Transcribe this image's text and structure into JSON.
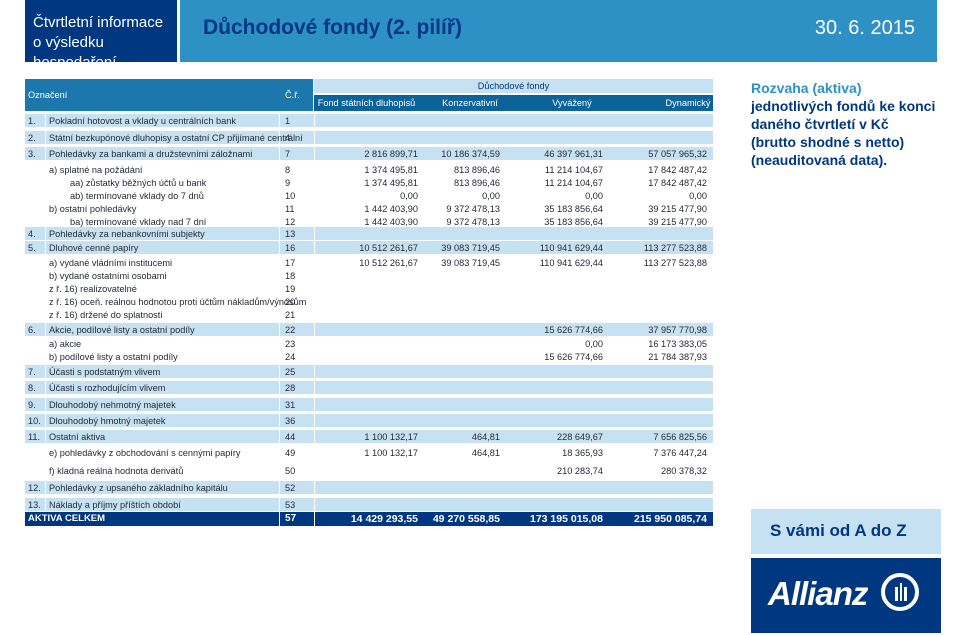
{
  "header": {
    "left_line1": "Čtvrtletní informace",
    "left_line2": "o výsledku hospodaření",
    "title": "Důchodové fondy (2. pilíř)",
    "date": "30. 6. 2015"
  },
  "table": {
    "col_label": "Označení",
    "col_row": "Č.ř.",
    "group_header": "Důchodové fondy",
    "funds": [
      "Fond státních dluhopisů",
      "Konzervativní",
      "Vyvážený",
      "Dynamický"
    ],
    "rows": [
      {
        "num": "1.",
        "label": "Pokladní hotovost a vklady u centrálních bank",
        "r": "1",
        "v": [
          "",
          "",
          "",
          ""
        ]
      },
      {
        "num": "2.",
        "label": "Státní bezkupónové dluhopisy a ostatní CP přijímané centrální",
        "r": "4",
        "v": [
          "",
          "",
          "",
          ""
        ]
      },
      {
        "num": "3.",
        "label": "Pohledávky za bankami a družstevními záložnami",
        "r": "7",
        "v": [
          "2 816 899,71",
          "10 186 374,59",
          "46 397 961,31",
          "57 057 965,32"
        ]
      },
      {
        "num": "",
        "label": "a) splatné na požádání",
        "r": "8",
        "v": [
          "1 374 495,81",
          "813 896,46",
          "11 214 104,67",
          "17 842 487,42"
        ]
      },
      {
        "num": "",
        "label": "aa) zůstatky běžných účtů u bank",
        "r": "9",
        "v": [
          "1 374 495,81",
          "813 896,46",
          "11 214 104,67",
          "17 842 487,42"
        ]
      },
      {
        "num": "",
        "label": "ab) termínované vklady do 7 dnů",
        "r": "10",
        "v": [
          "0,00",
          "0,00",
          "0,00",
          "0,00"
        ]
      },
      {
        "num": "",
        "label": "b) ostatní pohledávky",
        "r": "11",
        "v": [
          "1 442 403,90",
          "9 372 478,13",
          "35 183 856,64",
          "39 215 477,90"
        ]
      },
      {
        "num": "",
        "label": "ba) termínované vklady nad 7 dní",
        "r": "12",
        "v": [
          "1 442 403,90",
          "9 372 478,13",
          "35 183 856,64",
          "39 215 477,90"
        ]
      },
      {
        "num": "4.",
        "label": "Pohledávky za nebankovními subjekty",
        "r": "13",
        "v": [
          "",
          "",
          "",
          ""
        ]
      },
      {
        "num": "5.",
        "label": "Dluhové cenné papíry",
        "r": "16",
        "v": [
          "10 512 261,67",
          "39 083 719,45",
          "110 941 629,44",
          "113 277 523,88"
        ]
      },
      {
        "num": "",
        "label": "a) vydané vládními institucemi",
        "r": "17",
        "v": [
          "10 512 261,67",
          "39 083 719,45",
          "110 941 629,44",
          "113 277 523,88"
        ]
      },
      {
        "num": "",
        "label": "b) vydané ostatními osobami",
        "r": "18",
        "v": [
          "",
          "",
          "",
          ""
        ]
      },
      {
        "num": "",
        "label": "z ř. 16) realizovatelné",
        "r": "19",
        "v": [
          "",
          "",
          "",
          ""
        ]
      },
      {
        "num": "",
        "label": "z ř. 16) oceň. reálnou hodnotou proti účtům nákladům/výnosům",
        "r": "20",
        "v": [
          "",
          "",
          "",
          ""
        ]
      },
      {
        "num": "",
        "label": "z ř. 16) držené do splatnosti",
        "r": "21",
        "v": [
          "",
          "",
          "",
          ""
        ]
      },
      {
        "num": "6.",
        "label": "Akcie, podílové listy a ostatní podíly",
        "r": "22",
        "v": [
          "",
          "",
          "15 626 774,66",
          "37 957 770,98"
        ]
      },
      {
        "num": "",
        "label": "a) akcie",
        "r": "23",
        "v": [
          "",
          "",
          "0,00",
          "16 173 383,05"
        ]
      },
      {
        "num": "",
        "label": "b) podílové listy a ostatní podíly",
        "r": "24",
        "v": [
          "",
          "",
          "15 626 774,66",
          "21 784 387,93"
        ]
      },
      {
        "num": "7.",
        "label": "Účasti s podstatným vlivem",
        "r": "25",
        "v": [
          "",
          "",
          "",
          ""
        ]
      },
      {
        "num": "8.",
        "label": "Účasti s rozhodujícím vlivem",
        "r": "28",
        "v": [
          "",
          "",
          "",
          ""
        ]
      },
      {
        "num": "9.",
        "label": "Dlouhodobý nehmotný majetek",
        "r": "31",
        "v": [
          "",
          "",
          "",
          ""
        ]
      },
      {
        "num": "10.",
        "label": "Dlouhodobý hmotný majetek",
        "r": "36",
        "v": [
          "",
          "",
          "",
          ""
        ]
      },
      {
        "num": "11.",
        "label": "Ostatní aktiva",
        "r": "44",
        "v": [
          "1 100 132,17",
          "464,81",
          "228 649,67",
          "7 656 825,56"
        ]
      },
      {
        "num": "",
        "label": "e) pohledávky z obchodování s cennými papíry",
        "r": "49",
        "v": [
          "1 100 132,17",
          "464,81",
          "18 365,93",
          "7 376 447,24"
        ]
      },
      {
        "num": "",
        "label": "f) kladná reálná hodnota derivátů",
        "r": "50",
        "v": [
          "",
          "",
          "210 283,74",
          "280 378,32"
        ]
      },
      {
        "num": "12.",
        "label": "Pohledávky z upsaného základního kapitálu",
        "r": "52",
        "v": [
          "",
          "",
          "",
          ""
        ]
      },
      {
        "num": "13.",
        "label": "Náklady a příjmy příštích období",
        "r": "53",
        "v": [
          "",
          "",
          "",
          ""
        ]
      }
    ],
    "total": {
      "label": "AKTIVA CELKEM",
      "r": "57",
      "v": [
        "14 429 293,55",
        "49 270 558,85",
        "173 195 015,08",
        "215 950 085,74"
      ]
    }
  },
  "side": {
    "line1": "Rozvaha (aktiva)",
    "line2": "jednotlivých fondů ke konci",
    "line3": "daného čtvrtletí v Kč",
    "line4": "(brutto shodné s netto)",
    "line5": "(neauditovaná data)."
  },
  "svami": "S vámi od A do Z",
  "logo": "Allianz",
  "colors": {
    "brand_dark": "#003781",
    "brand_light": "#2d91c6",
    "row_bar": "#c6e1f1"
  }
}
